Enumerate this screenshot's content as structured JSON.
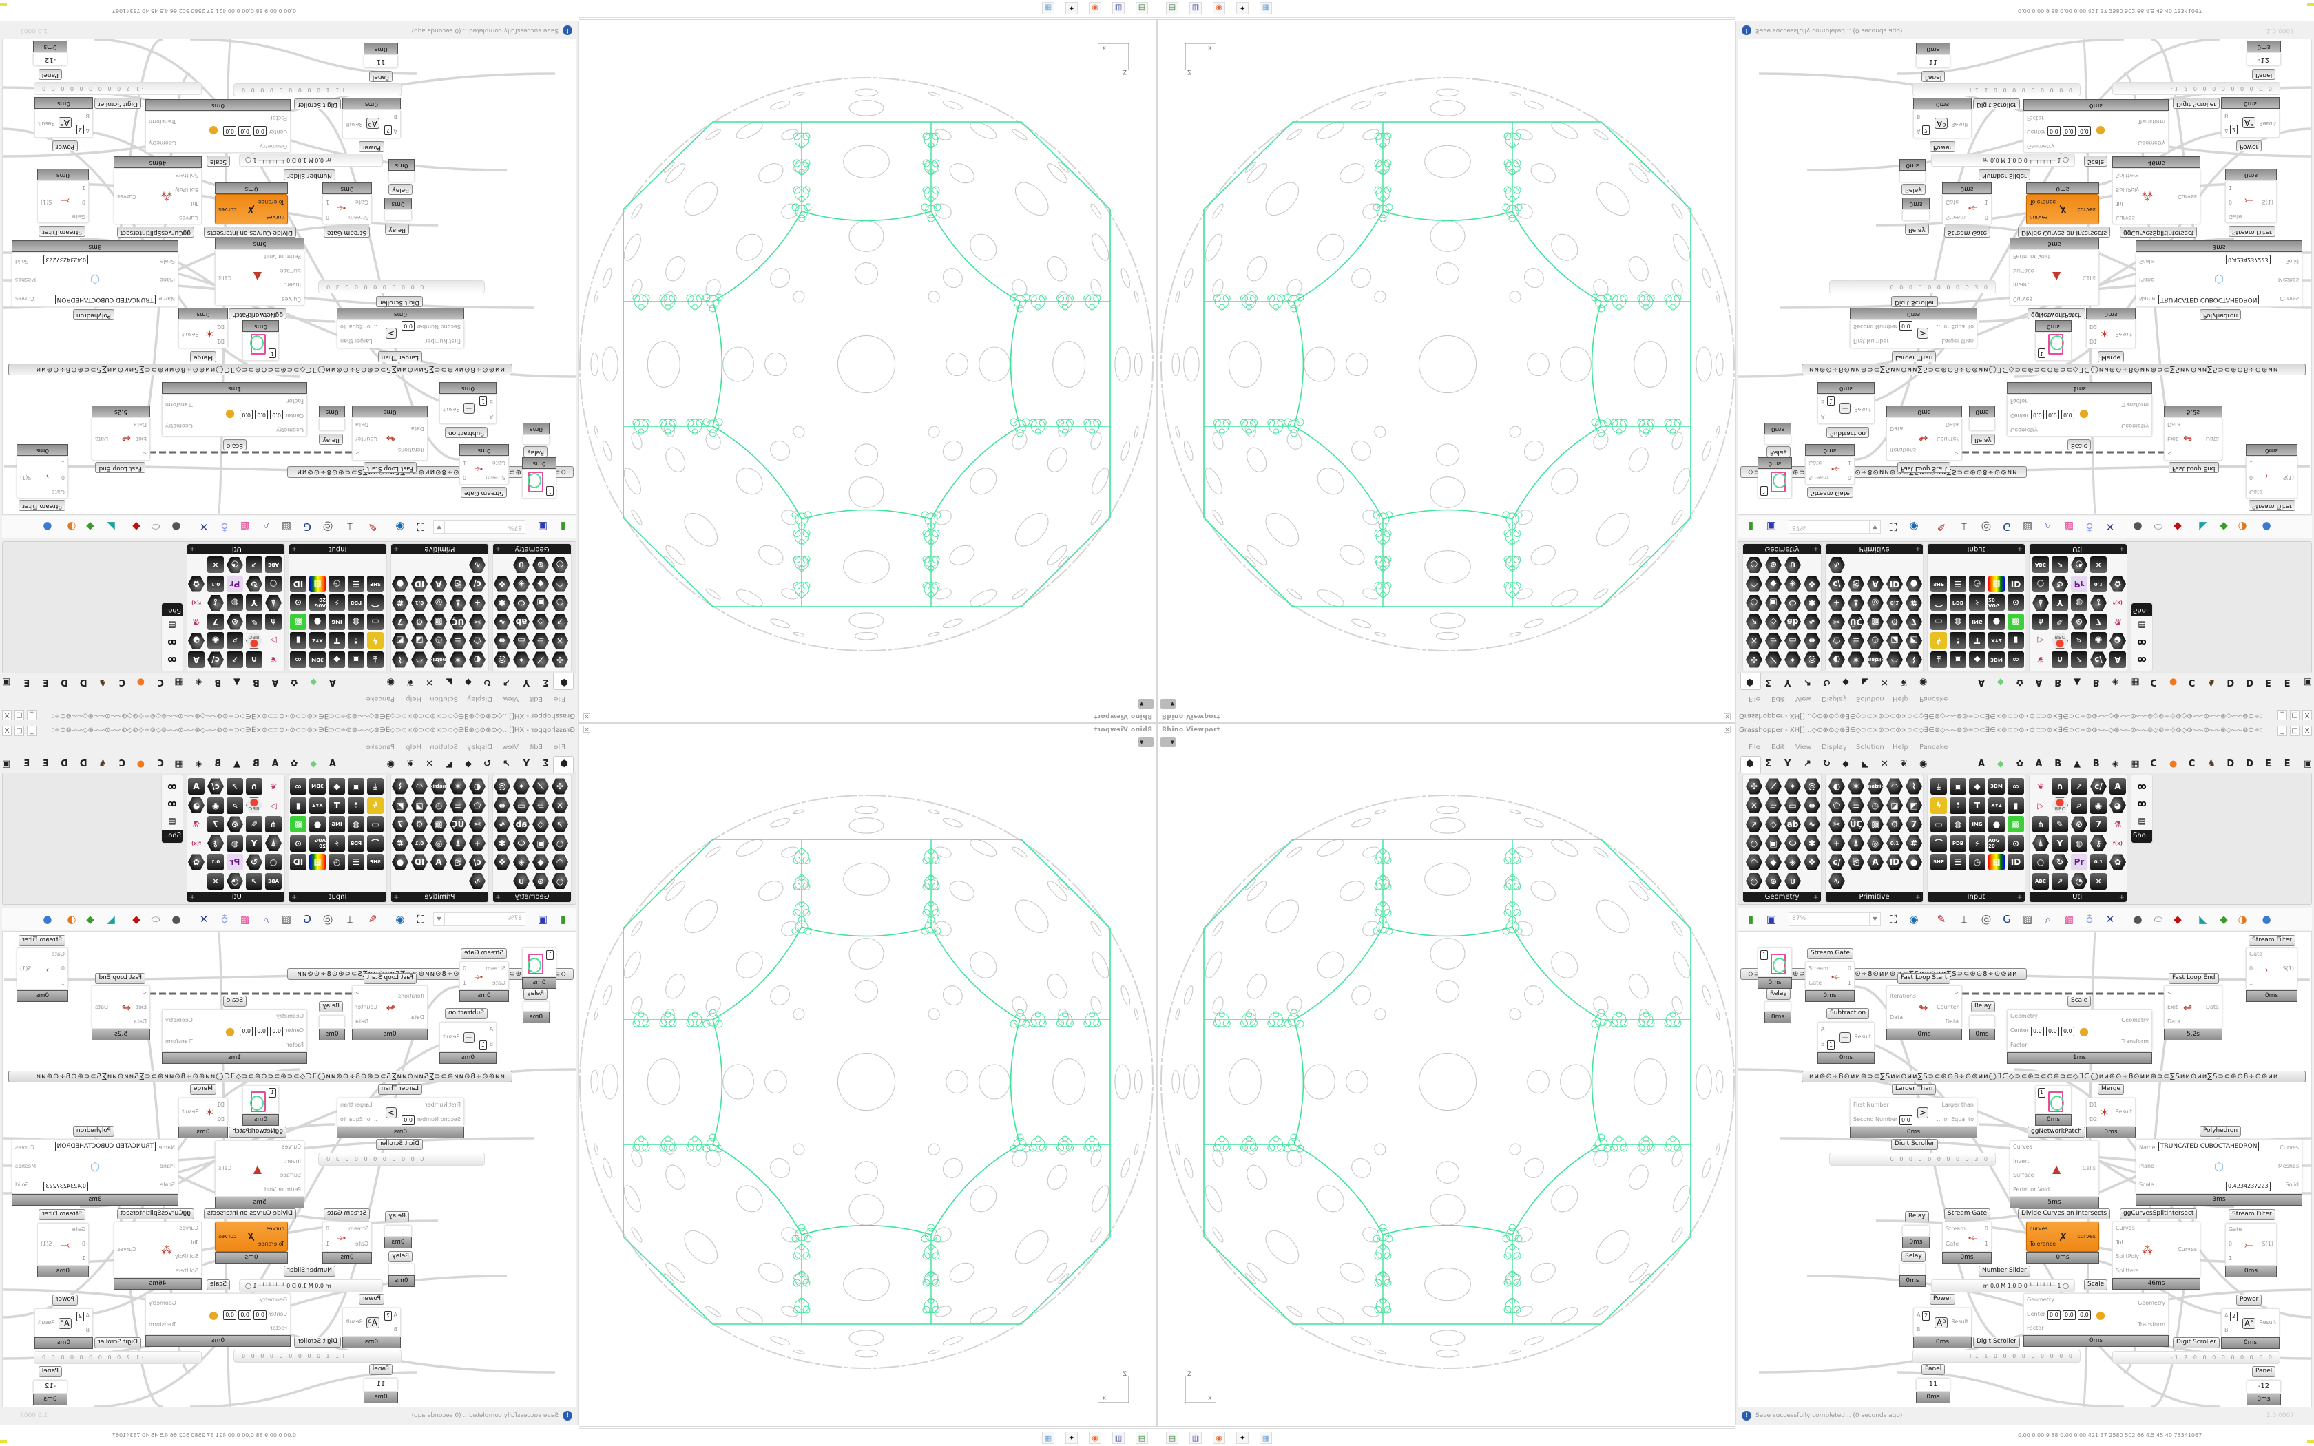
{
  "colors": {
    "accent_orange": "#f39221",
    "wire_gray": "#d0d0d0",
    "geometry_green": "#3fe39a",
    "footer_gray": "#9a9a9a",
    "info_blue": "#2a5db0"
  },
  "rhino": {
    "title": "Rhino Viewport",
    "close_icon": "close-icon",
    "axis_z": "Z",
    "axis_x": "x"
  },
  "taskbar": {
    "icons": [
      "terminal-icon",
      "floppy-64-icon",
      "firefox-icon",
      "inkscape-icon",
      "calculator-icon"
    ],
    "stats": "0.00 0.00  9   88  0.00 0.00  421  37  2580 502  66  4.5  45  40  73341067"
  },
  "grasshopper": {
    "title": "Grasshopper - XH[]...◇⊙⊕⊙◇⊛∃∈◇⊃⊂×⊙⊃⊂⊙×⊃⊂◇∃∈⊛◇⟜⟜⊚⊙÷⊃⊂∃∈×⊙⊂⊃⊙∝⊙⊂⊃⊙×∃∈⊃⊂÷⊙⊚⟜⟜◇⊛⟜⟜⊙⟜⟜⊚◇⊚÷⊹⊚◇⊚⟜⟜⊙⟜⟜⊛◇⟜⟜⊚⊙÷⊃⊂∃∈×⊙⊂⊃⊙∝⊙⊂⊃...",
    "window_buttons": [
      "_",
      "□",
      "X"
    ],
    "menu": [
      "File",
      "Edit",
      "View",
      "Display",
      "Solution",
      "Help",
      "Pancake"
    ],
    "tab_icons": [
      "⬢",
      "Σ",
      "Y",
      "↗",
      "↻",
      "◆",
      "◣",
      "✕",
      "❦",
      "◉"
    ],
    "tab_letters": [
      "A",
      "◆",
      "✿",
      "A",
      "B",
      "▲",
      "B",
      "◈",
      "▦",
      "C",
      "●",
      "C",
      "♞",
      "D",
      "D",
      "E",
      "E",
      "▣"
    ],
    "ribbon": {
      "panels": [
        {
          "name": "Geometry",
          "icons": [
            "vector",
            "line",
            "point",
            "spiral",
            "cross",
            "plane",
            "box",
            "flip",
            "arrow",
            "diamond",
            "abc",
            "wave",
            "circle",
            "cube",
            "capsule",
            "net",
            "arc",
            "gem",
            "mesh",
            "brep",
            "ring",
            "lattice",
            "magnet"
          ]
        },
        {
          "name": "Primitive",
          "icons": [
            "drop",
            "star",
            "matrix",
            "arc",
            "path",
            "pentagon",
            "stripes",
            "clock",
            "shade",
            "fold",
            "scissors",
            "uc",
            "checker",
            "gear",
            "seven",
            "minus",
            "tree",
            "ring",
            "0.1",
            "hash",
            "c/",
            "doc",
            "A",
            "ID",
            "sphere",
            "wave"
          ]
        },
        {
          "name": "Input",
          "icons": [
            "import",
            "frame",
            "gem",
            "3DM",
            "link",
            "spark",
            "pin",
            "t",
            "XYZ",
            "toggle",
            "swatch",
            "wheel",
            "IMG",
            "button",
            "checker",
            "graph",
            "PDB",
            "runner",
            "AUG 20",
            "target",
            "SHP",
            "list",
            "clock",
            "gradient",
            "ID"
          ]
        },
        {
          "name": "Util",
          "icons": [
            "cherry",
            "horseshoe",
            "arrow",
            "c/",
            "A",
            "play",
            "REC",
            "search",
            "coil",
            "eye",
            "axes",
            "pen",
            "compass",
            "7",
            "flask",
            "tree",
            "Y",
            "egg",
            "key",
            "f(x)",
            "loop",
            "refresh",
            "Pr",
            "0.1",
            "palette",
            "ABC",
            "arrow",
            "gauge",
            "x"
          ]
        }
      ],
      "extra_panel": "Sho..."
    },
    "toolbar": {
      "zoom": "87%",
      "icons": [
        "open-file-icon",
        "save-icon",
        "zoom-extents-icon",
        "eye-icon",
        "sketch-icon",
        "bug-icon",
        "at-icon",
        "gha-icon",
        "image-icon",
        "search-icon",
        "package-icon",
        "bulb-icon",
        "wires-icon",
        "sphere-gray-icon",
        "capsule-icon",
        "red-shape-icon",
        "teal-icon",
        "green-icon",
        "orange-sphere-icon",
        "blue-sphere-icon"
      ]
    },
    "canvas": {
      "group_bars": [
        "◇⊃⊂⊛⊃⊂⊙⊛⊃⊂◇∃∈◯ᴎᴎ⊚⊙÷8⊙ᴎᴎ⊛⊃⊂∑Sᴎᴎ⊙ᴎᴎ∑S⊃⊂⊛⊙8÷⊙⊚ᴎᴎ",
        "ᴎᴎ⊚⊙÷8⊙ᴎᴎ⊛⊃⊂∑Sᴎᴎ⊙ᴎᴎ∑S⊃⊂⊛⊙8÷⊙⊚ᴎᴎ◯∃∈◇⊃⊂⊛⊃⊂⊙⊛⊃⊂◇∃∈◯ᴎᴎ⊚⊙÷8⊙ᴎᴎ⊛⊃⊂∑Sᴎᴎ⊙ᴎᴎ∑S⊃⊂⊛⊙8÷⊙⊚ᴎᴎ"
      ],
      "nodes": [
        {
          "kind": "swatch",
          "value": "1",
          "time": "0ms"
        },
        {
          "kind": "comp",
          "label": "Stream Gate",
          "inputs": [
            "Stream",
            "Gate"
          ],
          "outputs": [
            "0",
            "1"
          ],
          "glyph": "⤝",
          "time": "0ms"
        },
        {
          "kind": "relay",
          "label": "Relay",
          "time": "0ms"
        },
        {
          "kind": "comp",
          "label": "Subtraction",
          "inputs": [
            "A",
            "B"
          ],
          "outputs": [
            "Result"
          ],
          "glyph": "−",
          "fields": [
            "1"
          ],
          "time": "0ms"
        },
        {
          "kind": "comp",
          "label": "Fast Loop Start",
          "inputs": [
            "Iterations",
            "Data"
          ],
          "outputs": [
            ">",
            "Counter",
            "Data"
          ],
          "glyph": "↬",
          "time": "0ms"
        },
        {
          "kind": "relay",
          "label": "Relay",
          "time": "0ms"
        },
        {
          "kind": "comp",
          "label": "Scale",
          "inputs": [
            "Geometry",
            "Center",
            "Factor"
          ],
          "outputs": [
            "Geometry",
            "Transform"
          ],
          "glyph": "●",
          "fields": [
            "0.0",
            "0.0",
            "0.0"
          ],
          "time": "1ms"
        },
        {
          "kind": "comp",
          "label": "Fast Loop End",
          "inputs": [
            "<",
            "Exit",
            "Data"
          ],
          "outputs": [
            "Data"
          ],
          "glyph": "↫",
          "time": "5.2s"
        },
        {
          "kind": "comp",
          "label": "Stream Filter",
          "inputs": [
            "Gate",
            "0",
            "1"
          ],
          "outputs": [
            "S(1)"
          ],
          "glyph": "⤚",
          "time": "0ms"
        },
        {
          "kind": "comp",
          "label": "Larger Than",
          "inputs": [
            "First Number",
            "Second Number"
          ],
          "outputs": [
            "Larger than",
            "... or Equal to"
          ],
          "glyph": ">",
          "fields": [
            "0.0"
          ],
          "time": "0ms"
        },
        {
          "kind": "swatch",
          "value": "1",
          "time": "0ms"
        },
        {
          "kind": "comp",
          "label": "Merge",
          "inputs": [
            "D1",
            "D2"
          ],
          "outputs": [
            "Result"
          ],
          "glyph": "✶",
          "time": "0ms"
        },
        {
          "kind": "comp",
          "label": "ggNetworkPatch",
          "inputs": [
            "Curves",
            "Invert",
            "Surface",
            "Perim or Void"
          ],
          "outputs": [
            "Cells"
          ],
          "glyph": "▲",
          "time": "5ms"
        },
        {
          "kind": "comp",
          "label": "Polyhedron",
          "inputs": [
            "Name",
            "Plane",
            "Scale"
          ],
          "outputs": [
            "Curves",
            "Meshes",
            "Solid"
          ],
          "glyph": "⬡",
          "fields": [
            "TRUNCATED CUBOCTAHEDRON",
            "0.4234237223"
          ],
          "time": "3ms"
        },
        {
          "kind": "scroller",
          "label": "Digit Scroller",
          "value": "0 0 0 0 0 0 0 0 0 3 0"
        },
        {
          "kind": "relay",
          "label": "Relay",
          "time": "0ms"
        },
        {
          "kind": "relay",
          "label": "Relay",
          "time": "0ms"
        },
        {
          "kind": "comp",
          "label": "Stream Gate",
          "inputs": [
            "Stream",
            "Gate"
          ],
          "outputs": [
            "0",
            "1"
          ],
          "glyph": "⤝",
          "time": "0ms"
        },
        {
          "kind": "comp",
          "label": "Divide Curves on Intersects",
          "inputs": [
            "curves",
            "Tolerance"
          ],
          "outputs": [
            "curves"
          ],
          "glyph": "✗",
          "orange": true,
          "time": "0ms"
        },
        {
          "kind": "comp",
          "label": "ggCurvesSplitIntersect",
          "inputs": [
            "Curves",
            "Tol",
            "SplitPoly",
            "Splitters"
          ],
          "outputs": [
            "Curves"
          ],
          "glyph": "⁂",
          "time": "46ms"
        },
        {
          "kind": "comp",
          "label": "Stream Filter",
          "inputs": [
            "Gate",
            "0",
            "1"
          ],
          "outputs": [
            "S(1)"
          ],
          "glyph": "⤚",
          "time": "0ms"
        },
        {
          "kind": "slider",
          "label": "Number Slider",
          "value": "m 0.0  M 1.0  D 0   ┴┴┴┴┴┴┴┴ 1 ◯"
        },
        {
          "kind": "comp",
          "label": "Scale",
          "inputs": [
            "Geometry",
            "Center",
            "Factor"
          ],
          "outputs": [
            "Geometry",
            "Transform"
          ],
          "glyph": "●",
          "fields": [
            "0.0",
            "0.0",
            "0.0"
          ],
          "time": "0ms"
        },
        {
          "kind": "comp",
          "label": "Power",
          "inputs": [
            "A",
            "B"
          ],
          "outputs": [
            "Result"
          ],
          "glyph": "Aᴮ",
          "fields": [
            "2"
          ],
          "time": "0ms"
        },
        {
          "kind": "comp",
          "label": "Power",
          "inputs": [
            "A",
            "B"
          ],
          "outputs": [
            "Result"
          ],
          "glyph": "Aᴮ",
          "fields": [
            "2"
          ],
          "time": "0ms"
        },
        {
          "kind": "scroller",
          "label": "Digit Scroller",
          "value": "+1 1 0 0 0 0 0 0 0 0 0"
        },
        {
          "kind": "scroller",
          "label": "Digit Scroller",
          "value": "-1 2 0 0 0 0 0 0 0 0 0"
        },
        {
          "kind": "panel",
          "label": "Panel",
          "value": "11",
          "time": "0ms"
        },
        {
          "kind": "panel",
          "label": "Panel",
          "value": "-12",
          "time": "0ms"
        }
      ]
    },
    "status": {
      "message": "Save successfully completed... (0 seconds ago)",
      "version": "1.0.0007",
      "icon": "info-icon"
    }
  }
}
